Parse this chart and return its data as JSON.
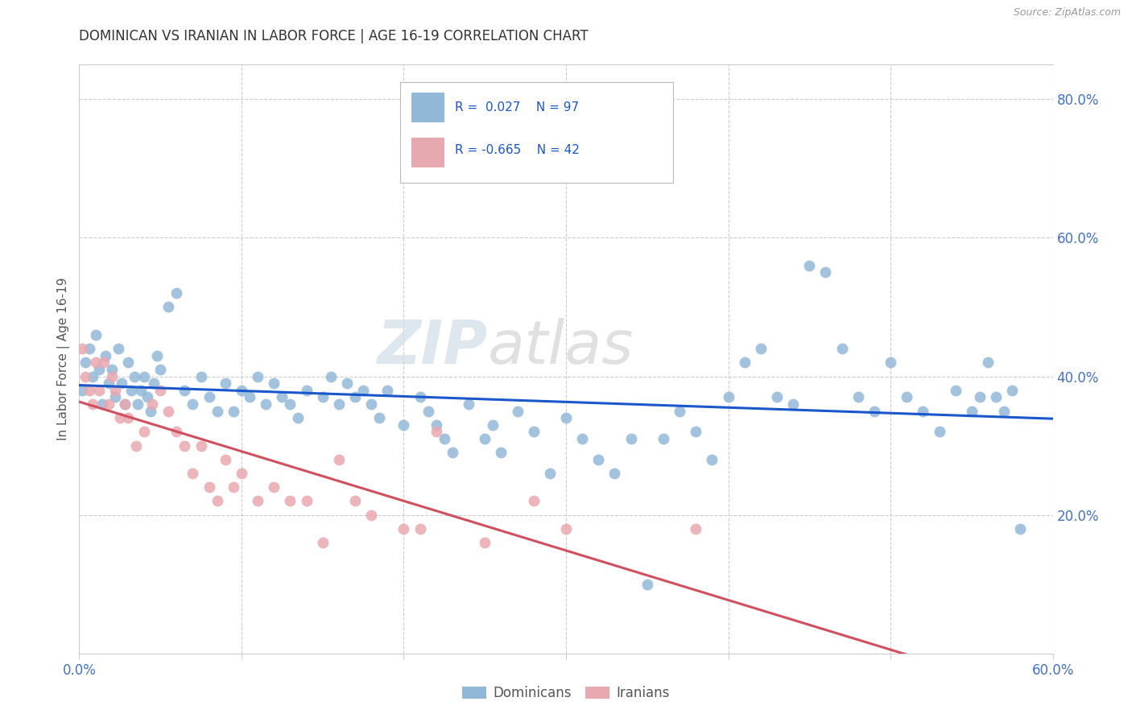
{
  "title": "DOMINICAN VS IRANIAN IN LABOR FORCE | AGE 16-19 CORRELATION CHART",
  "source": "Source: ZipAtlas.com",
  "ylabel": "In Labor Force | Age 16-19",
  "xlim": [
    0.0,
    0.6
  ],
  "ylim": [
    0.0,
    0.85
  ],
  "x_ticks": [
    0.0,
    0.1,
    0.2,
    0.3,
    0.4,
    0.5,
    0.6
  ],
  "y_ticks_right": [
    0.2,
    0.4,
    0.6,
    0.8
  ],
  "y_tick_labels_right": [
    "20.0%",
    "40.0%",
    "60.0%",
    "80.0%"
  ],
  "blue_color": "#92b8d8",
  "pink_color": "#e8a8b0",
  "blue_line_color": "#1a56cc",
  "pink_line_color": "#d05060",
  "watermark_zip": "ZIP",
  "watermark_atlas": "atlas",
  "dominican_x": [
    0.002,
    0.004,
    0.006,
    0.008,
    0.01,
    0.012,
    0.014,
    0.016,
    0.018,
    0.02,
    0.022,
    0.024,
    0.026,
    0.028,
    0.03,
    0.032,
    0.034,
    0.036,
    0.038,
    0.04,
    0.042,
    0.044,
    0.046,
    0.048,
    0.05,
    0.055,
    0.06,
    0.065,
    0.07,
    0.075,
    0.08,
    0.085,
    0.09,
    0.095,
    0.1,
    0.105,
    0.11,
    0.115,
    0.12,
    0.125,
    0.13,
    0.135,
    0.14,
    0.15,
    0.155,
    0.16,
    0.165,
    0.17,
    0.175,
    0.18,
    0.185,
    0.19,
    0.2,
    0.21,
    0.215,
    0.22,
    0.225,
    0.23,
    0.24,
    0.25,
    0.255,
    0.26,
    0.27,
    0.28,
    0.29,
    0.3,
    0.31,
    0.32,
    0.33,
    0.34,
    0.35,
    0.36,
    0.37,
    0.38,
    0.39,
    0.4,
    0.41,
    0.42,
    0.43,
    0.44,
    0.45,
    0.46,
    0.47,
    0.48,
    0.49,
    0.5,
    0.51,
    0.52,
    0.53,
    0.54,
    0.55,
    0.555,
    0.56,
    0.565,
    0.57,
    0.575,
    0.58
  ],
  "dominican_y": [
    0.38,
    0.42,
    0.44,
    0.4,
    0.46,
    0.41,
    0.36,
    0.43,
    0.39,
    0.41,
    0.37,
    0.44,
    0.39,
    0.36,
    0.42,
    0.38,
    0.4,
    0.36,
    0.38,
    0.4,
    0.37,
    0.35,
    0.39,
    0.43,
    0.41,
    0.5,
    0.52,
    0.38,
    0.36,
    0.4,
    0.37,
    0.35,
    0.39,
    0.35,
    0.38,
    0.37,
    0.4,
    0.36,
    0.39,
    0.37,
    0.36,
    0.34,
    0.38,
    0.37,
    0.4,
    0.36,
    0.39,
    0.37,
    0.38,
    0.36,
    0.34,
    0.38,
    0.33,
    0.37,
    0.35,
    0.33,
    0.31,
    0.29,
    0.36,
    0.31,
    0.33,
    0.29,
    0.35,
    0.32,
    0.26,
    0.34,
    0.31,
    0.28,
    0.26,
    0.31,
    0.1,
    0.31,
    0.35,
    0.32,
    0.28,
    0.37,
    0.42,
    0.44,
    0.37,
    0.36,
    0.56,
    0.55,
    0.44,
    0.37,
    0.35,
    0.42,
    0.37,
    0.35,
    0.32,
    0.38,
    0.35,
    0.37,
    0.42,
    0.37,
    0.35,
    0.38,
    0.18
  ],
  "iranian_x": [
    0.002,
    0.004,
    0.006,
    0.008,
    0.01,
    0.012,
    0.015,
    0.018,
    0.02,
    0.022,
    0.025,
    0.028,
    0.03,
    0.035,
    0.04,
    0.045,
    0.05,
    0.055,
    0.06,
    0.065,
    0.07,
    0.075,
    0.08,
    0.085,
    0.09,
    0.095,
    0.1,
    0.11,
    0.12,
    0.13,
    0.14,
    0.15,
    0.16,
    0.17,
    0.18,
    0.2,
    0.21,
    0.22,
    0.25,
    0.28,
    0.3,
    0.38
  ],
  "iranian_y": [
    0.44,
    0.4,
    0.38,
    0.36,
    0.42,
    0.38,
    0.42,
    0.36,
    0.4,
    0.38,
    0.34,
    0.36,
    0.34,
    0.3,
    0.32,
    0.36,
    0.38,
    0.35,
    0.32,
    0.3,
    0.26,
    0.3,
    0.24,
    0.22,
    0.28,
    0.24,
    0.26,
    0.22,
    0.24,
    0.22,
    0.22,
    0.16,
    0.28,
    0.22,
    0.2,
    0.18,
    0.18,
    0.32,
    0.16,
    0.22,
    0.18,
    0.18
  ]
}
